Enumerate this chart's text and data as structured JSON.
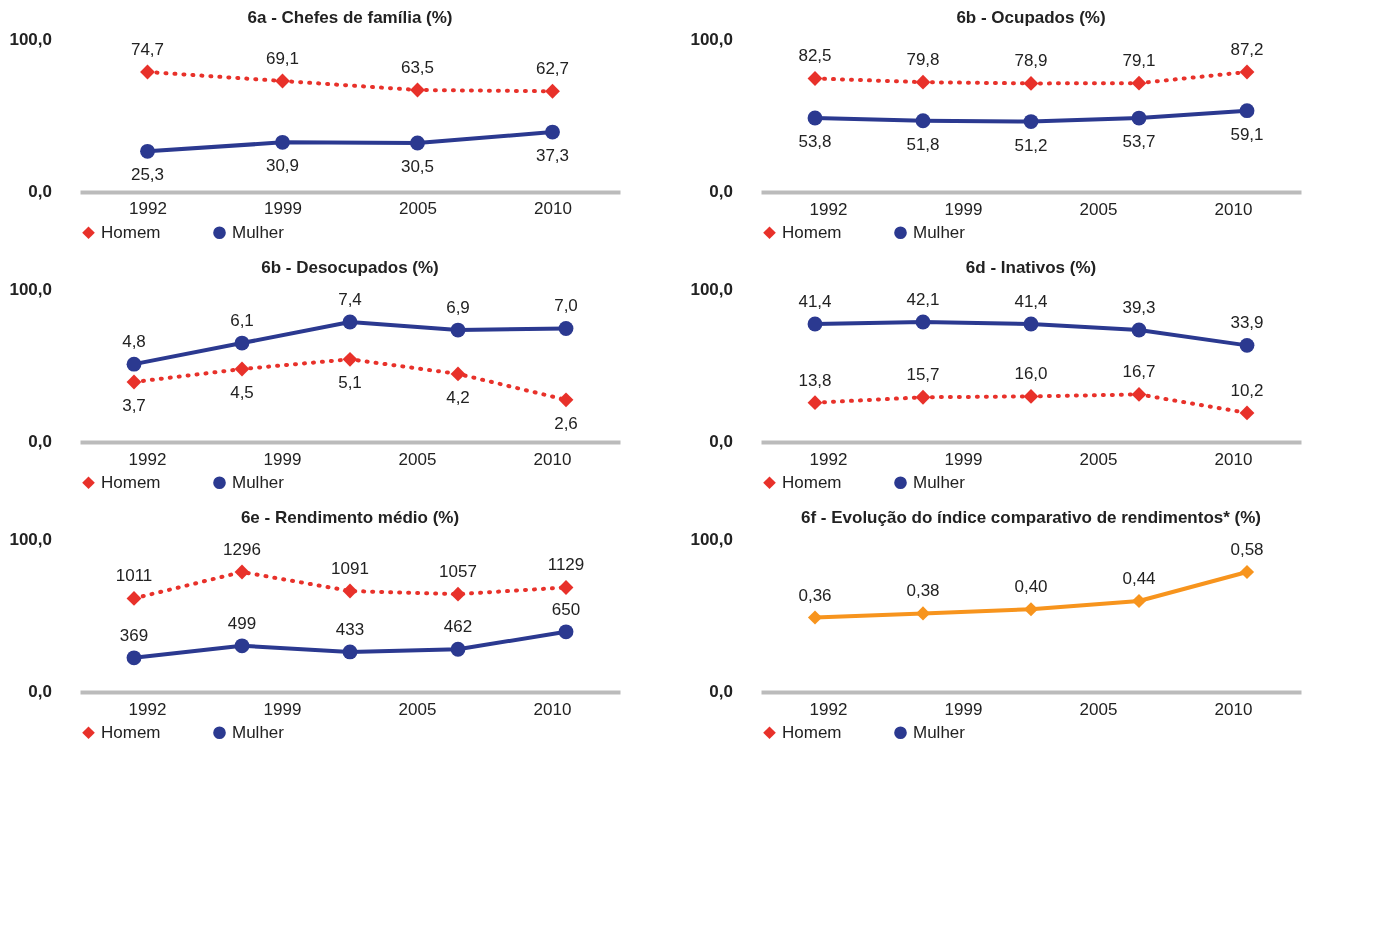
{
  "chart_data": [
    {
      "type": "line",
      "title": "6a - Chefes de família (%)",
      "categories": [
        "1992",
        "1999",
        "2005",
        "2010"
      ],
      "annotations": [
        "0,0",
        "100,0"
      ],
      "legend": "bottom",
      "grid": false,
      "series": [
        {
          "name": "Homem",
          "color": "#e8312a",
          "line_style": "dotted",
          "marker": "diamond",
          "values": [
            74.7,
            69.1,
            63.5,
            62.7
          ],
          "value_labels": [
            "74,7",
            "69,1",
            "63,5",
            "62,7"
          ]
        },
        {
          "name": "Mulher",
          "color": "#2b3990",
          "line_style": "solid",
          "marker": "circle",
          "values": [
            25.3,
            30.9,
            30.5,
            37.3
          ],
          "value_labels": [
            "25,3",
            "30,9",
            "30,5",
            "37,3"
          ]
        }
      ]
    },
    {
      "type": "line",
      "title": "6b - Ocupados (%)",
      "categories": [
        null,
        null,
        null,
        null,
        null
      ],
      "annotations": [
        "0,0",
        "100,0",
        "1992",
        "1999",
        "2005",
        "2010"
      ],
      "legend": "bottom",
      "grid": false,
      "series": [
        {
          "name": "Homem",
          "color": "#e8312a",
          "line_style": "dotted",
          "marker": "diamond",
          "values": [
            82.5,
            79.8,
            78.9,
            79.1,
            87.2
          ],
          "value_labels": [
            "82,5",
            "79,8",
            "78,9",
            "79,1",
            "87,2"
          ]
        },
        {
          "name": "Mulher",
          "color": "#2b3990",
          "line_style": "solid",
          "marker": "circle",
          "values": [
            53.8,
            51.8,
            51.2,
            53.7,
            59.1
          ],
          "value_labels": [
            "53,8",
            "51,8",
            "51,2",
            "53,7",
            "59,1"
          ]
        }
      ]
    },
    {
      "type": "line",
      "title": "6b - Desocupados (%)",
      "categories": [
        null,
        null,
        null,
        null,
        null
      ],
      "annotations": [
        "0,0",
        "100,0",
        "1992",
        "1999",
        "2005",
        "2010"
      ],
      "legend": "bottom",
      "grid": false,
      "series": [
        {
          "name": "Homem",
          "color": "#e8312a",
          "line_style": "dotted",
          "marker": "diamond",
          "values": [
            3.7,
            4.5,
            5.1,
            4.2,
            2.6
          ],
          "value_labels": [
            "3,7",
            "4,5",
            "5,1",
            "4,2",
            "2,6"
          ]
        },
        {
          "name": "Mulher",
          "color": "#2b3990",
          "line_style": "solid",
          "marker": "circle",
          "values": [
            4.8,
            6.1,
            7.4,
            6.9,
            7.0
          ],
          "value_labels": [
            "4,8",
            "6,1",
            "7,4",
            "6,9",
            "7,0"
          ]
        }
      ]
    },
    {
      "type": "line",
      "title": "6d - Inativos (%)",
      "categories": [
        null,
        null,
        null,
        null,
        null
      ],
      "annotations": [
        "0,0",
        "100,0",
        "1992",
        "1999",
        "2005",
        "2010"
      ],
      "legend": "bottom",
      "grid": false,
      "series": [
        {
          "name": "Homem",
          "color": "#e8312a",
          "line_style": "dotted",
          "marker": "diamond",
          "values": [
            13.8,
            15.7,
            16.0,
            16.7,
            10.2
          ],
          "value_labels": [
            "13,8",
            "15,7",
            "16,0",
            "16,7",
            "10,2"
          ]
        },
        {
          "name": "Mulher",
          "color": "#2b3990",
          "line_style": "solid",
          "marker": "circle",
          "values": [
            41.4,
            42.1,
            41.4,
            39.3,
            33.9
          ],
          "value_labels": [
            "41,4",
            "42,1",
            "41,4",
            "39,3",
            "33,9"
          ]
        }
      ]
    },
    {
      "type": "line",
      "title": "6e - Rendimento médio (%)",
      "categories": [
        null,
        null,
        null,
        null,
        null
      ],
      "annotations": [
        "0,0",
        "100,0",
        "1992",
        "1999",
        "2005",
        "2010"
      ],
      "legend": "bottom",
      "grid": false,
      "series": [
        {
          "name": "Homem",
          "color": "#e8312a",
          "line_style": "dotted",
          "marker": "diamond",
          "values": [
            1011,
            1296,
            1091,
            1057,
            1129
          ],
          "value_labels": [
            "1011",
            "1296",
            "1091",
            "1057",
            "1129"
          ]
        },
        {
          "name": "Mulher",
          "color": "#2b3990",
          "line_style": "solid",
          "marker": "circle",
          "values": [
            369,
            499,
            433,
            462,
            650
          ],
          "value_labels": [
            "369",
            "499",
            "433",
            "462",
            "650"
          ]
        }
      ]
    },
    {
      "type": "line",
      "title": "6f - Evolução do índice comparativo de rendimentos* (%)",
      "categories": [
        null,
        null,
        null,
        null,
        null
      ],
      "annotations": [
        "0,0",
        "100,0",
        "1992",
        "1999",
        "2005",
        "2010"
      ],
      "legend": "bottom",
      "grid": false,
      "series": [
        {
          "name": "Homem",
          "color": "#e8312a",
          "line_style": "dotted",
          "marker": "diamond",
          "values": [
            null,
            null,
            null,
            null,
            null
          ]
        },
        {
          "name": "Mulher",
          "color": "#2b3990",
          "line_style": "solid",
          "marker": "circle",
          "values": [
            null,
            null,
            null,
            null,
            null
          ]
        },
        {
          "color": "#f7941d",
          "line_style": "solid",
          "marker": "diamond",
          "values": [
            0.36,
            0.38,
            0.4,
            0.44,
            0.58
          ],
          "value_labels": [
            "0,36",
            "0,38",
            "0,40",
            "0,44",
            "0,58"
          ]
        }
      ]
    }
  ]
}
